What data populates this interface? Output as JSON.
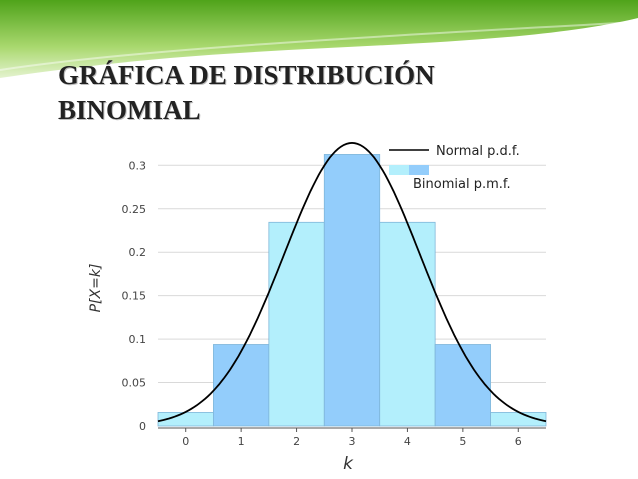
{
  "slide": {
    "title_line1": "GRÁFICA DE DISTRIBUCIÓN",
    "title_line2": "BINOMIAL",
    "colors": {
      "banner_dark": "#4fa31a",
      "banner_light": "#a9d86e",
      "banner_pale": "#e4f3cf"
    }
  },
  "chart_data": {
    "type": "bar",
    "categories": [
      "0",
      "1",
      "2",
      "3",
      "4",
      "5",
      "6"
    ],
    "x": [
      0,
      1,
      2,
      3,
      4,
      5,
      6
    ],
    "series": [
      {
        "name": "Binomial p.m.f.",
        "type": "bar",
        "values": [
          0.0156,
          0.0938,
          0.2344,
          0.3125,
          0.2344,
          0.0938,
          0.0156
        ],
        "colors": [
          "#b3effc",
          "#93cdfb",
          "#b3effc",
          "#93cdfb",
          "#b3effc",
          "#93cdfb",
          "#b3effc"
        ]
      },
      {
        "name": "Normal p.d.f.",
        "type": "line",
        "mean": 3,
        "sd": 1.2247,
        "color": "#000000"
      }
    ],
    "xlabel": "k",
    "ylabel": "P[X=k]",
    "xlim": [
      -0.5,
      6.5
    ],
    "ylim": [
      0,
      0.32
    ],
    "xticks": [
      "0",
      "1",
      "2",
      "3",
      "4",
      "5",
      "6"
    ],
    "yticks": [
      "0",
      "0.05",
      "0.1",
      "0.15",
      "0.2",
      "0.25",
      "0.3"
    ],
    "grid": true,
    "legend_position": "top-right"
  }
}
